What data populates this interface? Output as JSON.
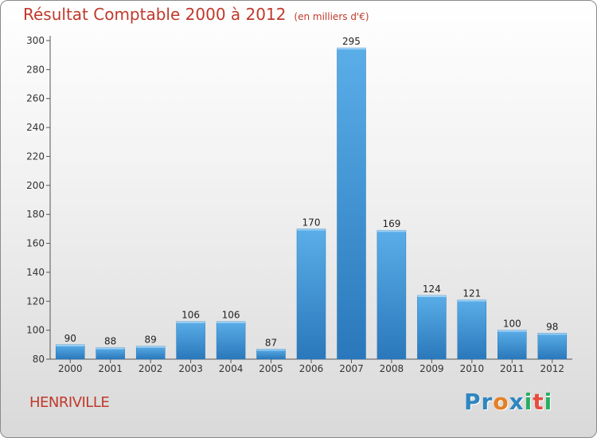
{
  "header": {
    "title": "Résultat Comptable 2000 à 2012",
    "subtitle": "(en milliers d'€)"
  },
  "footer": {
    "commune": "HENRIVILLE",
    "logo_letters": [
      "P",
      "r",
      "o",
      "x",
      "i",
      "t",
      "i"
    ],
    "logo_colors": [
      "#2e86c1",
      "#2e86c1",
      "#e67e22",
      "#2e86c1",
      "#27ae60",
      "#e74c3c",
      "#27ae60"
    ]
  },
  "chart_data": {
    "type": "bar",
    "title": "Résultat Comptable 2000 à 2012",
    "subtitle": "(en milliers d'€)",
    "categories": [
      "2000",
      "2001",
      "2002",
      "2003",
      "2004",
      "2005",
      "2006",
      "2007",
      "2008",
      "2009",
      "2010",
      "2011",
      "2012"
    ],
    "values": [
      90,
      88,
      89,
      106,
      106,
      87,
      170,
      295,
      169,
      124,
      121,
      100,
      98
    ],
    "xlabel": "",
    "ylabel": "",
    "ylim": [
      80,
      300
    ],
    "yticks": [
      80,
      100,
      120,
      140,
      160,
      180,
      200,
      220,
      240,
      260,
      280,
      300
    ],
    "grid": false,
    "bar_color": "#3a8fd4",
    "bar_color_light": "#5aaee8",
    "bar_color_dark": "#2a78bb"
  }
}
